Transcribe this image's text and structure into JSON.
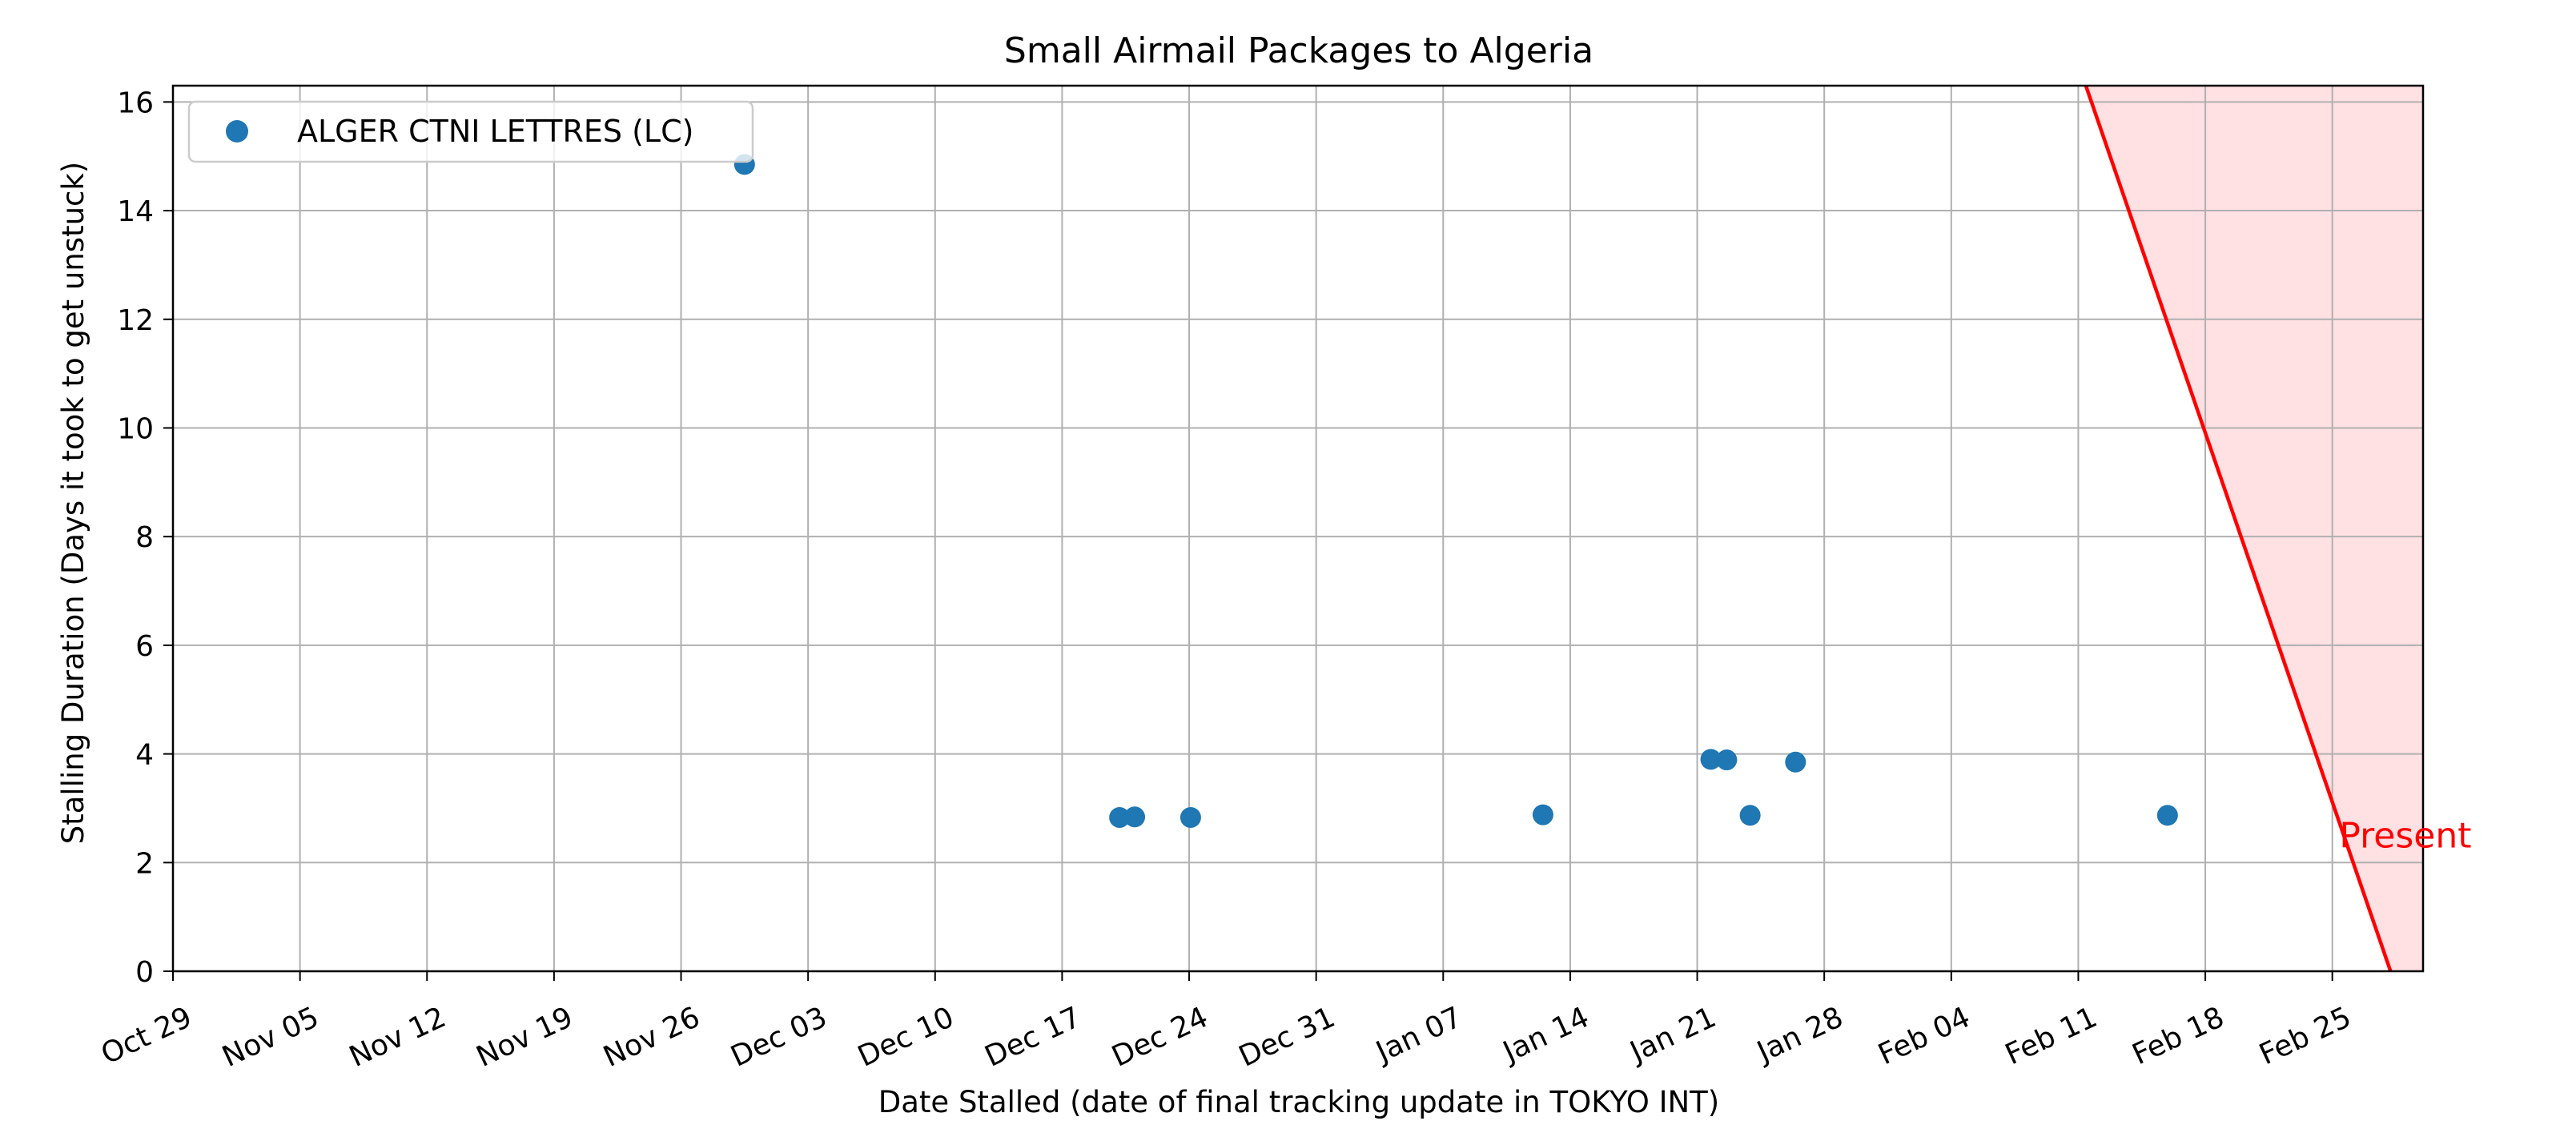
{
  "chart_data": {
    "type": "scatter",
    "title": "Small Airmail Packages to Algeria",
    "xlabel": "Date Stalled (date of final tracking update in TOKYO INT)",
    "ylabel": "Stalling Duration (Days it took to get unstuck)",
    "xlim": [
      "2023-10-29",
      "2024-03-01"
    ],
    "ylim": [
      0,
      16.3
    ],
    "x_ticks": [
      {
        "date": "2023-10-29",
        "label": "Oct 29"
      },
      {
        "date": "2023-11-05",
        "label": "Nov 05"
      },
      {
        "date": "2023-11-12",
        "label": "Nov 12"
      },
      {
        "date": "2023-11-19",
        "label": "Nov 19"
      },
      {
        "date": "2023-11-26",
        "label": "Nov 26"
      },
      {
        "date": "2023-12-03",
        "label": "Dec 03"
      },
      {
        "date": "2023-12-10",
        "label": "Dec 10"
      },
      {
        "date": "2023-12-17",
        "label": "Dec 17"
      },
      {
        "date": "2023-12-24",
        "label": "Dec 24"
      },
      {
        "date": "2023-12-31",
        "label": "Dec 31"
      },
      {
        "date": "2024-01-07",
        "label": "Jan 07"
      },
      {
        "date": "2024-01-14",
        "label": "Jan 14"
      },
      {
        "date": "2024-01-21",
        "label": "Jan 21"
      },
      {
        "date": "2024-01-28",
        "label": "Jan 28"
      },
      {
        "date": "2024-02-04",
        "label": "Feb 04"
      },
      {
        "date": "2024-02-11",
        "label": "Feb 11"
      },
      {
        "date": "2024-02-18",
        "label": "Feb 18"
      },
      {
        "date": "2024-02-25",
        "label": "Feb 25"
      }
    ],
    "y_ticks": [
      0,
      2,
      4,
      6,
      8,
      10,
      12,
      14,
      16
    ],
    "grid": true,
    "legend_position": "top-left",
    "series": [
      {
        "name": "ALGER CTNI LETTRES (LC)",
        "color": "#1f77b4",
        "points": [
          {
            "x": "2023-11-29 12:00",
            "y": 14.85
          },
          {
            "x": "2023-12-20 04:00",
            "y": 2.83
          },
          {
            "x": "2023-12-21 00:00",
            "y": 2.84
          },
          {
            "x": "2023-12-24 02:00",
            "y": 2.83
          },
          {
            "x": "2024-01-12 12:00",
            "y": 2.88
          },
          {
            "x": "2024-01-21 18:00",
            "y": 3.9
          },
          {
            "x": "2024-01-22 15:00",
            "y": 3.89
          },
          {
            "x": "2024-01-23 22:00",
            "y": 2.87
          },
          {
            "x": "2024-01-26 10:00",
            "y": 3.85
          },
          {
            "x": "2024-02-15 22:00",
            "y": 2.87
          }
        ]
      }
    ],
    "present_line": {
      "color": "#ff0000",
      "fill_color": "#ffe0e3",
      "label": "Present",
      "points": [
        {
          "x": "2024-02-11 10:00",
          "y": 16.3
        },
        {
          "x": "2024-02-28 05:00",
          "y": 0
        }
      ]
    }
  }
}
